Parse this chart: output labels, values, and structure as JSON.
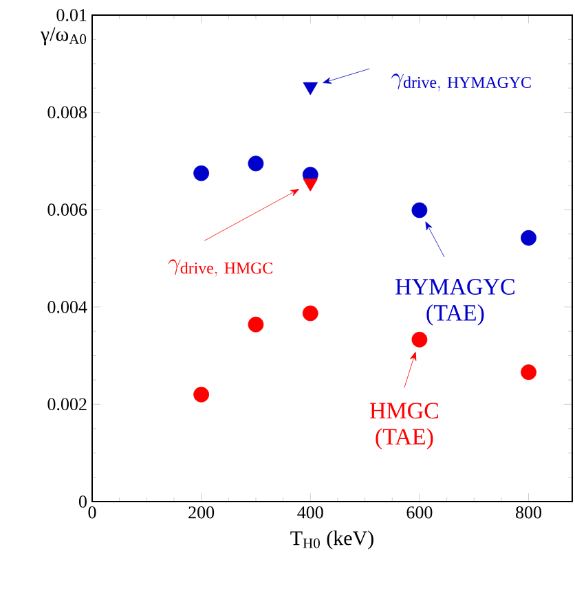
{
  "chart_data": {
    "type": "scatter",
    "xlabel": "T$_{H0}$ (keV)",
    "ylabel": "γ/ω$_{A0}$",
    "xlim": [
      0,
      880
    ],
    "ylim": [
      0,
      0.01
    ],
    "xticks": [
      0,
      200,
      400,
      600,
      800
    ],
    "yticks": [
      0,
      0.002,
      0.004,
      0.006,
      0.008,
      0.01
    ],
    "series": [
      {
        "color": "#0000cc",
        "marker": "circle",
        "x": [
          200,
          300,
          400,
          600,
          800
        ],
        "values": [
          0.00675,
          0.00695,
          0.00672,
          0.00599,
          0.00542
        ]
      },
      {
        "color": "#ff0000",
        "marker": "circle",
        "x": [
          200,
          300,
          400,
          600,
          800
        ],
        "values": [
          0.0022,
          0.00364,
          0.00387,
          0.00333,
          0.00266
        ]
      },
      {
        "color": "#0000cc",
        "marker": "triangle",
        "x": [
          400
        ],
        "values": [
          0.00853
        ]
      },
      {
        "color": "#ff0000",
        "marker": "triangle",
        "x": [
          400
        ],
        "values": [
          0.00655
        ]
      }
    ],
    "annotations": [
      {
        "text": "HYMAGYC (TAE)",
        "x": 600,
        "y": 0.00599
      },
      {
        "text": "HMGC (TAE)",
        "x": 600,
        "y": 0.00333
      },
      "\\gamma_{\\mathrm{drive,\\ HYMAGYC}}",
      "\\gamma_{\\mathrm{drive,\\ HMGC}}"
    ]
  }
}
